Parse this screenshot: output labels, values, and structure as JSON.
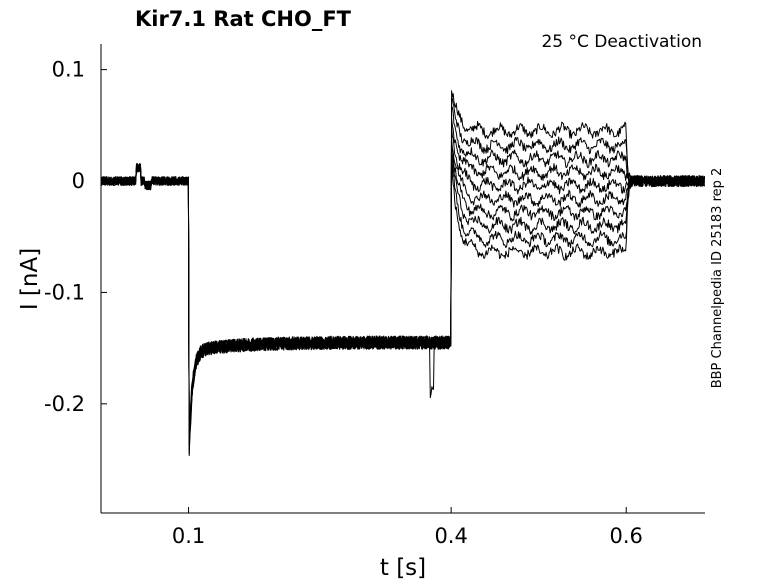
{
  "chart_data": {
    "type": "line",
    "title": "Kir7.1  Rat  CHO_FT",
    "annotation": "25 °C  Deactivation",
    "side_label": "BBP Channelpedia ID 25183 rep 2",
    "xlabel": "t [s]",
    "ylabel": "I [nA]",
    "xlim": [
      0.0,
      0.69
    ],
    "ylim": [
      -0.298,
      0.123
    ],
    "x_ticks": [
      0.1,
      0.4,
      0.6
    ],
    "x_tick_labels": [
      "0.1",
      "0.4",
      "0.6"
    ],
    "y_ticks": [
      0.1,
      0,
      -0.1,
      -0.2
    ],
    "y_tick_labels": [
      "0.1",
      "0",
      "-0.1",
      "-0.2"
    ],
    "grid": false,
    "line_color": "#000000",
    "protocol": {
      "hold_end": 0.1,
      "hyperpolarize_end": 0.4,
      "test_end": 0.6,
      "steady_state_levels": [
        0.045,
        0.032,
        0.02,
        0.008,
        -0.004,
        -0.016,
        -0.028,
        -0.04,
        -0.052,
        -0.064
      ]
    },
    "series": [
      {
        "x": [
          0.0,
          0.1,
          0.1,
          0.115,
          0.4,
          0.4,
          0.6,
          0.6,
          0.69
        ],
        "y": [
          0,
          0,
          -0.258,
          -0.15,
          -0.145,
          0.083,
          0.045,
          0,
          0
        ]
      },
      {
        "x": [
          0.0,
          0.1,
          0.1,
          0.115,
          0.4,
          0.4,
          0.6,
          0.6,
          0.69
        ],
        "y": [
          0,
          0,
          -0.255,
          -0.15,
          -0.145,
          0.075,
          0.032,
          0,
          0
        ]
      },
      {
        "x": [
          0.0,
          0.1,
          0.1,
          0.115,
          0.4,
          0.4,
          0.6,
          0.6,
          0.69
        ],
        "y": [
          0,
          0,
          -0.25,
          -0.15,
          -0.145,
          0.068,
          0.02,
          0,
          0
        ]
      },
      {
        "x": [
          0.0,
          0.1,
          0.1,
          0.115,
          0.4,
          0.4,
          0.6,
          0.6,
          0.69
        ],
        "y": [
          0,
          0,
          -0.248,
          -0.15,
          -0.145,
          0.06,
          0.008,
          0,
          0
        ]
      },
      {
        "x": [
          0.0,
          0.1,
          0.1,
          0.115,
          0.4,
          0.4,
          0.6,
          0.6,
          0.69
        ],
        "y": [
          0,
          0,
          -0.245,
          -0.15,
          -0.145,
          0.052,
          -0.004,
          0,
          0
        ]
      },
      {
        "x": [
          0.0,
          0.1,
          0.1,
          0.115,
          0.4,
          0.4,
          0.6,
          0.6,
          0.69
        ],
        "y": [
          0,
          0,
          -0.243,
          -0.15,
          -0.145,
          0.045,
          -0.016,
          0,
          0
        ]
      },
      {
        "x": [
          0.0,
          0.1,
          0.1,
          0.115,
          0.4,
          0.4,
          0.6,
          0.6,
          0.69
        ],
        "y": [
          0,
          0,
          -0.24,
          -0.15,
          -0.145,
          0.038,
          -0.028,
          0,
          0
        ]
      },
      {
        "x": [
          0.0,
          0.1,
          0.1,
          0.115,
          0.4,
          0.4,
          0.6,
          0.6,
          0.69
        ],
        "y": [
          0,
          0,
          -0.238,
          -0.15,
          -0.145,
          0.03,
          -0.04,
          0,
          0
        ]
      },
      {
        "x": [
          0.0,
          0.1,
          0.1,
          0.115,
          0.4,
          0.4,
          0.6,
          0.6,
          0.69
        ],
        "y": [
          0,
          0,
          -0.235,
          -0.15,
          -0.145,
          0.022,
          -0.052,
          0,
          0
        ]
      },
      {
        "x": [
          0.0,
          0.1,
          0.1,
          0.115,
          0.4,
          0.4,
          0.6,
          0.6,
          0.69
        ],
        "y": [
          0,
          0,
          -0.232,
          -0.15,
          -0.145,
          0.015,
          -0.064,
          0,
          0
        ]
      }
    ]
  }
}
